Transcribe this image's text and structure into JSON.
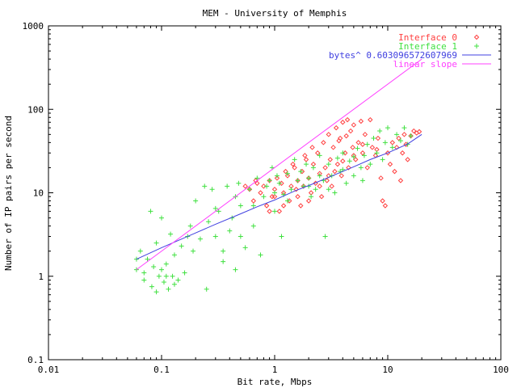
{
  "chart_data": {
    "type": "scatter",
    "title": "MEM - University of Memphis",
    "xlabel": "Bit rate, Mbps",
    "ylabel": "Number of IP pairs per second",
    "x_scale": "log",
    "y_scale": "log",
    "xlim": [
      0.01,
      100
    ],
    "ylim": [
      0.1,
      1000
    ],
    "x_ticks": [
      "0.01",
      "0.1",
      "1",
      "10",
      "100"
    ],
    "x_tick_values": [
      0.01,
      0.1,
      1,
      10,
      100
    ],
    "y_ticks": [
      "0.1",
      "1",
      "10",
      "100",
      "1000"
    ],
    "y_tick_values": [
      0.1,
      1,
      10,
      100,
      1000
    ],
    "grid": false,
    "legend_position": "top-right",
    "series": [
      {
        "name": "Interface 0",
        "kind": "points",
        "marker": "diamond",
        "color": "#ff4040",
        "points": [
          [
            0.6,
            11
          ],
          [
            0.65,
            8
          ],
          [
            0.7,
            13
          ],
          [
            0.75,
            10
          ],
          [
            0.8,
            12
          ],
          [
            0.85,
            7
          ],
          [
            0.9,
            14
          ],
          [
            0.95,
            9
          ],
          [
            1.0,
            11
          ],
          [
            1.05,
            15
          ],
          [
            1.1,
            6
          ],
          [
            1.15,
            13
          ],
          [
            1.2,
            10
          ],
          [
            1.3,
            16
          ],
          [
            1.35,
            8
          ],
          [
            1.4,
            12
          ],
          [
            1.5,
            20
          ],
          [
            1.55,
            11
          ],
          [
            1.6,
            14
          ],
          [
            1.7,
            7
          ],
          [
            1.75,
            18
          ],
          [
            1.8,
            12
          ],
          [
            1.9,
            25
          ],
          [
            2.0,
            15
          ],
          [
            2.1,
            10
          ],
          [
            2.2,
            22
          ],
          [
            2.3,
            13
          ],
          [
            2.4,
            30
          ],
          [
            2.5,
            17
          ],
          [
            2.6,
            9
          ],
          [
            2.7,
            40
          ],
          [
            2.8,
            20
          ],
          [
            2.9,
            14
          ],
          [
            3.0,
            50
          ],
          [
            3.1,
            25
          ],
          [
            3.2,
            12
          ],
          [
            3.3,
            35
          ],
          [
            3.4,
            18
          ],
          [
            3.5,
            60
          ],
          [
            3.6,
            22
          ],
          [
            3.8,
            45
          ],
          [
            3.9,
            16
          ],
          [
            4.0,
            70
          ],
          [
            4.2,
            30
          ],
          [
            4.4,
            75
          ],
          [
            4.5,
            20
          ],
          [
            4.7,
            55
          ],
          [
            4.9,
            35
          ],
          [
            5.0,
            65
          ],
          [
            5.2,
            25
          ],
          [
            5.5,
            40
          ],
          [
            5.8,
            72
          ],
          [
            6.0,
            30
          ],
          [
            6.3,
            50
          ],
          [
            6.6,
            20
          ],
          [
            7.0,
            75
          ],
          [
            7.3,
            35
          ],
          [
            7.8,
            28
          ],
          [
            8.2,
            45
          ],
          [
            8.7,
            15
          ],
          [
            9.0,
            8
          ],
          [
            9.5,
            7
          ],
          [
            10,
            30
          ],
          [
            10.5,
            22
          ],
          [
            11,
            40
          ],
          [
            11.5,
            18
          ],
          [
            12,
            35
          ],
          [
            12.5,
            45
          ],
          [
            13,
            14
          ],
          [
            13.5,
            30
          ],
          [
            14,
            50
          ],
          [
            14.5,
            38
          ],
          [
            15,
            25
          ],
          [
            16,
            48
          ],
          [
            17,
            55
          ],
          [
            18,
            52
          ],
          [
            19,
            54
          ],
          [
            1.0,
            9
          ],
          [
            1.2,
            7
          ],
          [
            0.9,
            6
          ],
          [
            1.6,
            9
          ],
          [
            2.0,
            8
          ],
          [
            2.5,
            12
          ],
          [
            3.0,
            16
          ],
          [
            4.0,
            24
          ],
          [
            5.0,
            28
          ],
          [
            6.0,
            38
          ],
          [
            8.0,
            33
          ],
          [
            0.55,
            12
          ],
          [
            0.68,
            14
          ],
          [
            1.25,
            18
          ],
          [
            1.45,
            22
          ],
          [
            1.85,
            28
          ],
          [
            2.15,
            35
          ],
          [
            3.7,
            42
          ],
          [
            4.3,
            48
          ]
        ]
      },
      {
        "name": "Interface 1",
        "kind": "points",
        "marker": "plus",
        "color": "#40e040",
        "points": [
          [
            0.06,
            1.2
          ],
          [
            0.065,
            2.0
          ],
          [
            0.07,
            0.9
          ],
          [
            0.075,
            1.6
          ],
          [
            0.08,
            6.0
          ],
          [
            0.082,
            0.75
          ],
          [
            0.085,
            1.3
          ],
          [
            0.09,
            2.5
          ],
          [
            0.095,
            1.0
          ],
          [
            0.1,
            5.0
          ],
          [
            0.1,
            1.2
          ],
          [
            0.105,
            0.85
          ],
          [
            0.11,
            1.4
          ],
          [
            0.115,
            0.7
          ],
          [
            0.12,
            3.2
          ],
          [
            0.125,
            1.0
          ],
          [
            0.13,
            1.8
          ],
          [
            0.14,
            0.9
          ],
          [
            0.15,
            2.3
          ],
          [
            0.16,
            1.1
          ],
          [
            0.17,
            3.0
          ],
          [
            0.18,
            4.0
          ],
          [
            0.19,
            2.0
          ],
          [
            0.2,
            8.0
          ],
          [
            0.22,
            2.8
          ],
          [
            0.24,
            12
          ],
          [
            0.26,
            4.5
          ],
          [
            0.28,
            11
          ],
          [
            0.3,
            3.0
          ],
          [
            0.32,
            6.0
          ],
          [
            0.35,
            2.0
          ],
          [
            0.38,
            12
          ],
          [
            0.4,
            3.5
          ],
          [
            0.42,
            5.0
          ],
          [
            0.45,
            9.0
          ],
          [
            0.48,
            13
          ],
          [
            0.5,
            7.0
          ],
          [
            0.55,
            2.2
          ],
          [
            0.6,
            11
          ],
          [
            0.65,
            4.0
          ],
          [
            0.7,
            15
          ],
          [
            0.75,
            1.8
          ],
          [
            0.8,
            9.0
          ],
          [
            0.85,
            12
          ],
          [
            0.9,
            14
          ],
          [
            0.95,
            20
          ],
          [
            1.0,
            10
          ],
          [
            1.05,
            16
          ],
          [
            1.1,
            13
          ],
          [
            1.15,
            3.0
          ],
          [
            1.2,
            9.5
          ],
          [
            1.3,
            17
          ],
          [
            1.4,
            11
          ],
          [
            1.5,
            25
          ],
          [
            1.6,
            14
          ],
          [
            1.7,
            18
          ],
          [
            1.8,
            12
          ],
          [
            1.9,
            22
          ],
          [
            2.0,
            15
          ],
          [
            2.1,
            9
          ],
          [
            2.2,
            20
          ],
          [
            2.3,
            11
          ],
          [
            2.5,
            28
          ],
          [
            2.7,
            14
          ],
          [
            2.8,
            3.0
          ],
          [
            3.0,
            22
          ],
          [
            3.2,
            16
          ],
          [
            3.4,
            10
          ],
          [
            3.6,
            26
          ],
          [
            3.8,
            18
          ],
          [
            4.0,
            30
          ],
          [
            4.3,
            13
          ],
          [
            4.6,
            24
          ],
          [
            5.0,
            16
          ],
          [
            5.4,
            34
          ],
          [
            5.8,
            20
          ],
          [
            6.2,
            28
          ],
          [
            6.6,
            38
          ],
          [
            7.0,
            22
          ],
          [
            7.5,
            45
          ],
          [
            8.0,
            30
          ],
          [
            8.5,
            55
          ],
          [
            9.0,
            25
          ],
          [
            9.5,
            40
          ],
          [
            10,
            60
          ],
          [
            11,
            35
          ],
          [
            12,
            50
          ],
          [
            13,
            42
          ],
          [
            14,
            60
          ],
          [
            15,
            38
          ],
          [
            16,
            48
          ],
          [
            0.06,
            1.6
          ],
          [
            0.07,
            1.1
          ],
          [
            0.09,
            0.65
          ],
          [
            0.11,
            1.0
          ],
          [
            0.13,
            0.8
          ],
          [
            0.35,
            1.5
          ],
          [
            0.45,
            1.2
          ],
          [
            0.25,
            0.7
          ],
          [
            0.3,
            6.5
          ],
          [
            0.5,
            3.0
          ],
          [
            0.65,
            7.0
          ],
          [
            1.0,
            6.0
          ],
          [
            1.3,
            8.0
          ],
          [
            2.0,
            12
          ],
          [
            2.5,
            16
          ],
          [
            3.0,
            11
          ],
          [
            4.0,
            19
          ],
          [
            5.0,
            27
          ],
          [
            6.0,
            14
          ]
        ]
      },
      {
        "name": "bytes^ 0.603096572607969",
        "kind": "line",
        "color": "#4040e0",
        "points": [
          [
            0.06,
            1.6
          ],
          [
            0.1,
            2.2
          ],
          [
            0.2,
            3.3
          ],
          [
            0.3,
            4.2
          ],
          [
            0.5,
            5.6
          ],
          [
            0.7,
            6.8
          ],
          [
            1.0,
            8.2
          ],
          [
            1.5,
            10.5
          ],
          [
            2.0,
            12.2
          ],
          [
            3.0,
            15.3
          ],
          [
            5.0,
            20.5
          ],
          [
            7.0,
            25.0
          ],
          [
            10.0,
            30.0
          ],
          [
            15.0,
            38.5
          ],
          [
            20.0,
            50.0
          ]
        ]
      },
      {
        "name": "linear slope",
        "kind": "line",
        "color": "#ff40ff",
        "points": [
          [
            0.06,
            1.2
          ],
          [
            20.0,
            400
          ]
        ]
      }
    ]
  }
}
